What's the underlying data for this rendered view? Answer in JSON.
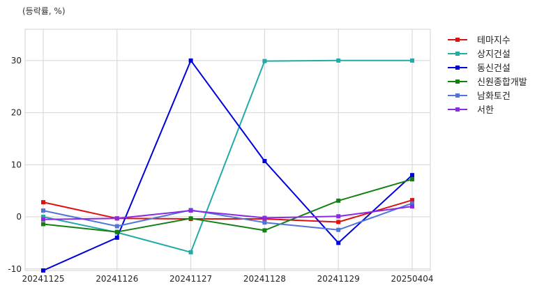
{
  "chart_data": {
    "type": "line",
    "unit_label": "(등락률, %)",
    "x": [
      "20241125",
      "20241126",
      "20241127",
      "20241128",
      "20241129",
      "20250404"
    ],
    "y_ticks": [
      -10,
      0,
      10,
      20,
      30
    ],
    "ylim": [
      -10.3,
      36
    ],
    "grid": true,
    "legend_position": "right",
    "series": [
      {
        "name": "테마지수",
        "color": "#dd1111",
        "values": [
          2.8,
          -0.3,
          -0.4,
          -0.4,
          -1.0,
          3.2
        ]
      },
      {
        "name": "상지건설",
        "color": "#22aaa6",
        "values": [
          0.0,
          -3.0,
          -6.8,
          29.9,
          30.0,
          30.0
        ]
      },
      {
        "name": "동신건설",
        "color": "#0000dd",
        "values": [
          -10.3,
          -4.0,
          30.0,
          10.7,
          -5.0,
          8.0
        ]
      },
      {
        "name": "신원종합개발",
        "color": "#138013",
        "values": [
          -1.4,
          -2.9,
          -0.3,
          -2.6,
          3.1,
          7.2
        ]
      },
      {
        "name": "남화토건",
        "color": "#4f75d6",
        "values": [
          1.2,
          -1.8,
          1.3,
          -1.1,
          -2.5,
          2.6
        ]
      },
      {
        "name": "서한",
        "color": "#8a2be2",
        "values": [
          -0.5,
          -0.3,
          1.2,
          -0.2,
          0.1,
          2.0
        ]
      }
    ]
  }
}
